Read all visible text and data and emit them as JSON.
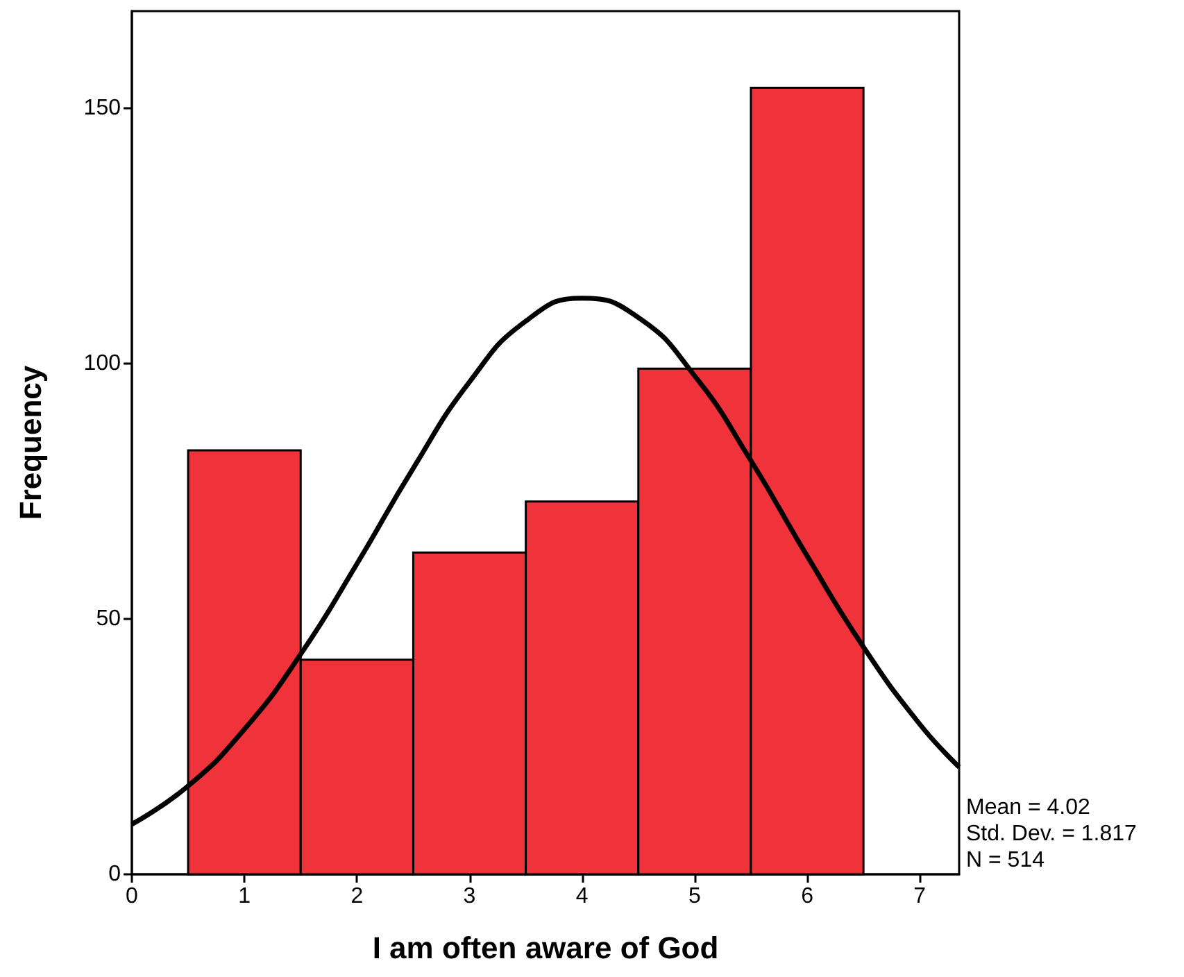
{
  "chart_data": {
    "type": "histogram",
    "xlabel": "I am often aware of God",
    "ylabel": "Frequency",
    "bins": [
      0.5,
      1.5,
      2.5,
      3.5,
      4.5,
      5.5,
      6.5
    ],
    "values": [
      83,
      42,
      63,
      73,
      99,
      154
    ],
    "color": "#f0323a",
    "series": [
      {
        "type": "line",
        "color": "#000000",
        "x": [
          0,
          0.5,
          1,
          1.5,
          2,
          2.5,
          3,
          3.5,
          4,
          4.5,
          5,
          5.5,
          6,
          6.5,
          7,
          7.35
        ],
        "values": [
          9.8,
          17.3,
          28.4,
          43.1,
          60.8,
          79.5,
          96.4,
          108.3,
          112.8,
          109,
          97.6,
          81,
          62.3,
          44.5,
          29.4,
          21
        ]
      }
    ],
    "marker": "none",
    "line_style": "solid",
    "grid": false,
    "xlim": [
      0,
      7.35
    ],
    "xticks": [
      0,
      1,
      2,
      3,
      4,
      5,
      6,
      7
    ],
    "ylim": [
      0,
      169
    ],
    "yticks": [
      0,
      50,
      100,
      150
    ],
    "annotations": [
      "Mean = 4.02",
      "Std. Dev. = 1.817",
      "N = 514"
    ]
  }
}
